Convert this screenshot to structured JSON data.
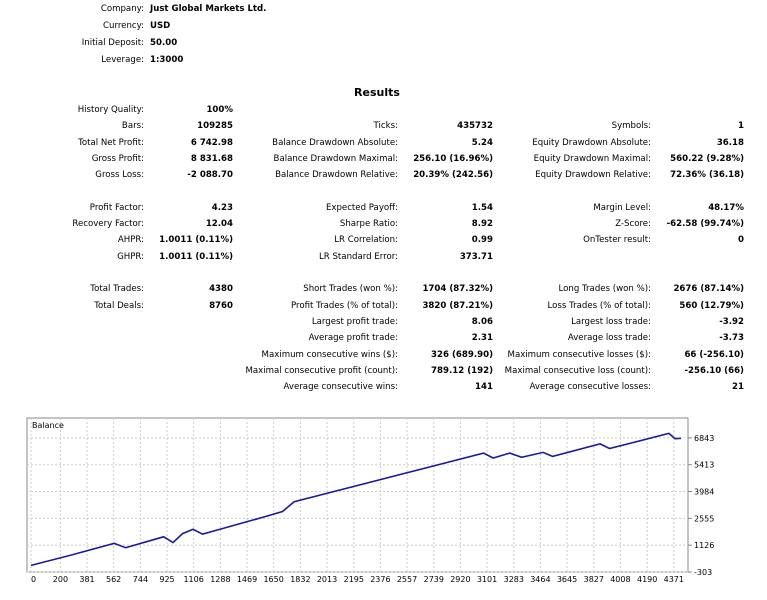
{
  "info": [
    {
      "label": "Company:",
      "value": "Just Global Markets Ltd."
    },
    {
      "label": "Currency:",
      "value": "USD"
    },
    {
      "label": "Initial Deposit:",
      "value": "50.00"
    },
    {
      "label": "Leverage:",
      "value": "1:3000"
    }
  ],
  "results_title": "Results",
  "rows": [
    {
      "row": 0,
      "cells": [
        [
          "History Quality:",
          "100%"
        ],
        null,
        null
      ]
    },
    {
      "row": 1,
      "cells": [
        [
          "Bars:",
          "109285"
        ],
        [
          "Ticks:",
          "435732"
        ],
        [
          "Symbols:",
          "1"
        ]
      ]
    },
    {
      "row": 2,
      "cells": [
        [
          "Total Net Profit:",
          "6 742.98"
        ],
        [
          "Balance Drawdown Absolute:",
          "5.24"
        ],
        [
          "Equity Drawdown Absolute:",
          "36.18"
        ]
      ]
    },
    {
      "row": 3,
      "cells": [
        [
          "Gross Profit:",
          "8 831.68"
        ],
        [
          "Balance Drawdown Maximal:",
          "256.10 (16.96%)"
        ],
        [
          "Equity Drawdown Maximal:",
          "560.22 (9.28%)"
        ]
      ]
    },
    {
      "row": 4,
      "cells": [
        [
          "Gross Loss:",
          "-2 088.70"
        ],
        [
          "Balance Drawdown Relative:",
          "20.39% (242.56)"
        ],
        [
          "Equity Drawdown Relative:",
          "72.36% (36.18)"
        ]
      ]
    },
    {
      "row": 6,
      "cells": [
        [
          "Profit Factor:",
          "4.23"
        ],
        [
          "Expected Payoff:",
          "1.54"
        ],
        [
          "Margin Level:",
          "48.17%"
        ]
      ]
    },
    {
      "row": 7,
      "cells": [
        [
          "Recovery Factor:",
          "12.04"
        ],
        [
          "Sharpe Ratio:",
          "8.92"
        ],
        [
          "Z-Score:",
          "-62.58 (99.74%)"
        ]
      ]
    },
    {
      "row": 8,
      "cells": [
        [
          "AHPR:",
          "1.0011 (0.11%)"
        ],
        [
          "LR Correlation:",
          "0.99"
        ],
        [
          "OnTester result:",
          "0"
        ]
      ]
    },
    {
      "row": 9,
      "cells": [
        [
          "GHPR:",
          "1.0011 (0.11%)"
        ],
        [
          "LR Standard Error:",
          "373.71"
        ],
        null
      ]
    },
    {
      "row": 11,
      "cells": [
        [
          "Total Trades:",
          "4380"
        ],
        [
          "Short Trades (won %):",
          "1704 (87.32%)"
        ],
        [
          "Long Trades (won %):",
          "2676 (87.14%)"
        ]
      ]
    },
    {
      "row": 12,
      "cells": [
        [
          "Total Deals:",
          "8760"
        ],
        [
          "Profit Trades (% of total):",
          "3820 (87.21%)"
        ],
        [
          "Loss Trades (% of total):",
          "560 (12.79%)"
        ]
      ]
    },
    {
      "row": 13,
      "cells": [
        null,
        [
          "Largest profit trade:",
          "8.06"
        ],
        [
          "Largest loss trade:",
          "-3.92"
        ]
      ]
    },
    {
      "row": 14,
      "cells": [
        null,
        [
          "Average profit trade:",
          "2.31"
        ],
        [
          "Average loss trade:",
          "-3.73"
        ]
      ]
    },
    {
      "row": 15,
      "cells": [
        null,
        [
          "Maximum consecutive wins ($):",
          "326 (689.90)"
        ],
        [
          "Maximum consecutive losses ($):",
          "66 (-256.10)"
        ]
      ]
    },
    {
      "row": 16,
      "cells": [
        null,
        [
          "Maximal consecutive profit (count):",
          "789.12 (192)"
        ],
        [
          "Maximal consecutive loss (count):",
          "-256.10 (66)"
        ]
      ]
    },
    {
      "row": 17,
      "cells": [
        null,
        [
          "Average consecutive wins:",
          "141"
        ],
        [
          "Average consecutive losses:",
          "21"
        ]
      ]
    }
  ],
  "chart_data": {
    "type": "line",
    "title": "Balance",
    "line_color": "#1a1a9c",
    "grid": true,
    "xlim": [
      0,
      4420
    ],
    "ylim": [
      -303,
      7900
    ],
    "x_ticks": [
      "0",
      "200",
      "381",
      "562",
      "744",
      "925",
      "1106",
      "1288",
      "1469",
      "1650",
      "1832",
      "2013",
      "2195",
      "2376",
      "2557",
      "2739",
      "2920",
      "3101",
      "3283",
      "3464",
      "3645",
      "3827",
      "4008",
      "4190",
      "4371"
    ],
    "y_ticks": [
      "6843",
      "5413",
      "3984",
      "2555",
      "1126",
      "-303"
    ],
    "series": [
      {
        "x": [
          0,
          252,
          566,
          644,
          902,
          966,
          1031,
          1102,
          1166,
          1580,
          1710,
          1790,
          3078,
          3143,
          3256,
          3336,
          3482,
          3547,
          3870,
          3934,
          4338,
          4380,
          4420
        ],
        "y": [
          50,
          555,
          1220,
          990,
          1570,
          1270,
          1745,
          1970,
          1710,
          2620,
          2920,
          3440,
          6030,
          5770,
          6030,
          5805,
          6065,
          5855,
          6520,
          6275,
          7080,
          6800,
          6820
        ]
      }
    ]
  }
}
